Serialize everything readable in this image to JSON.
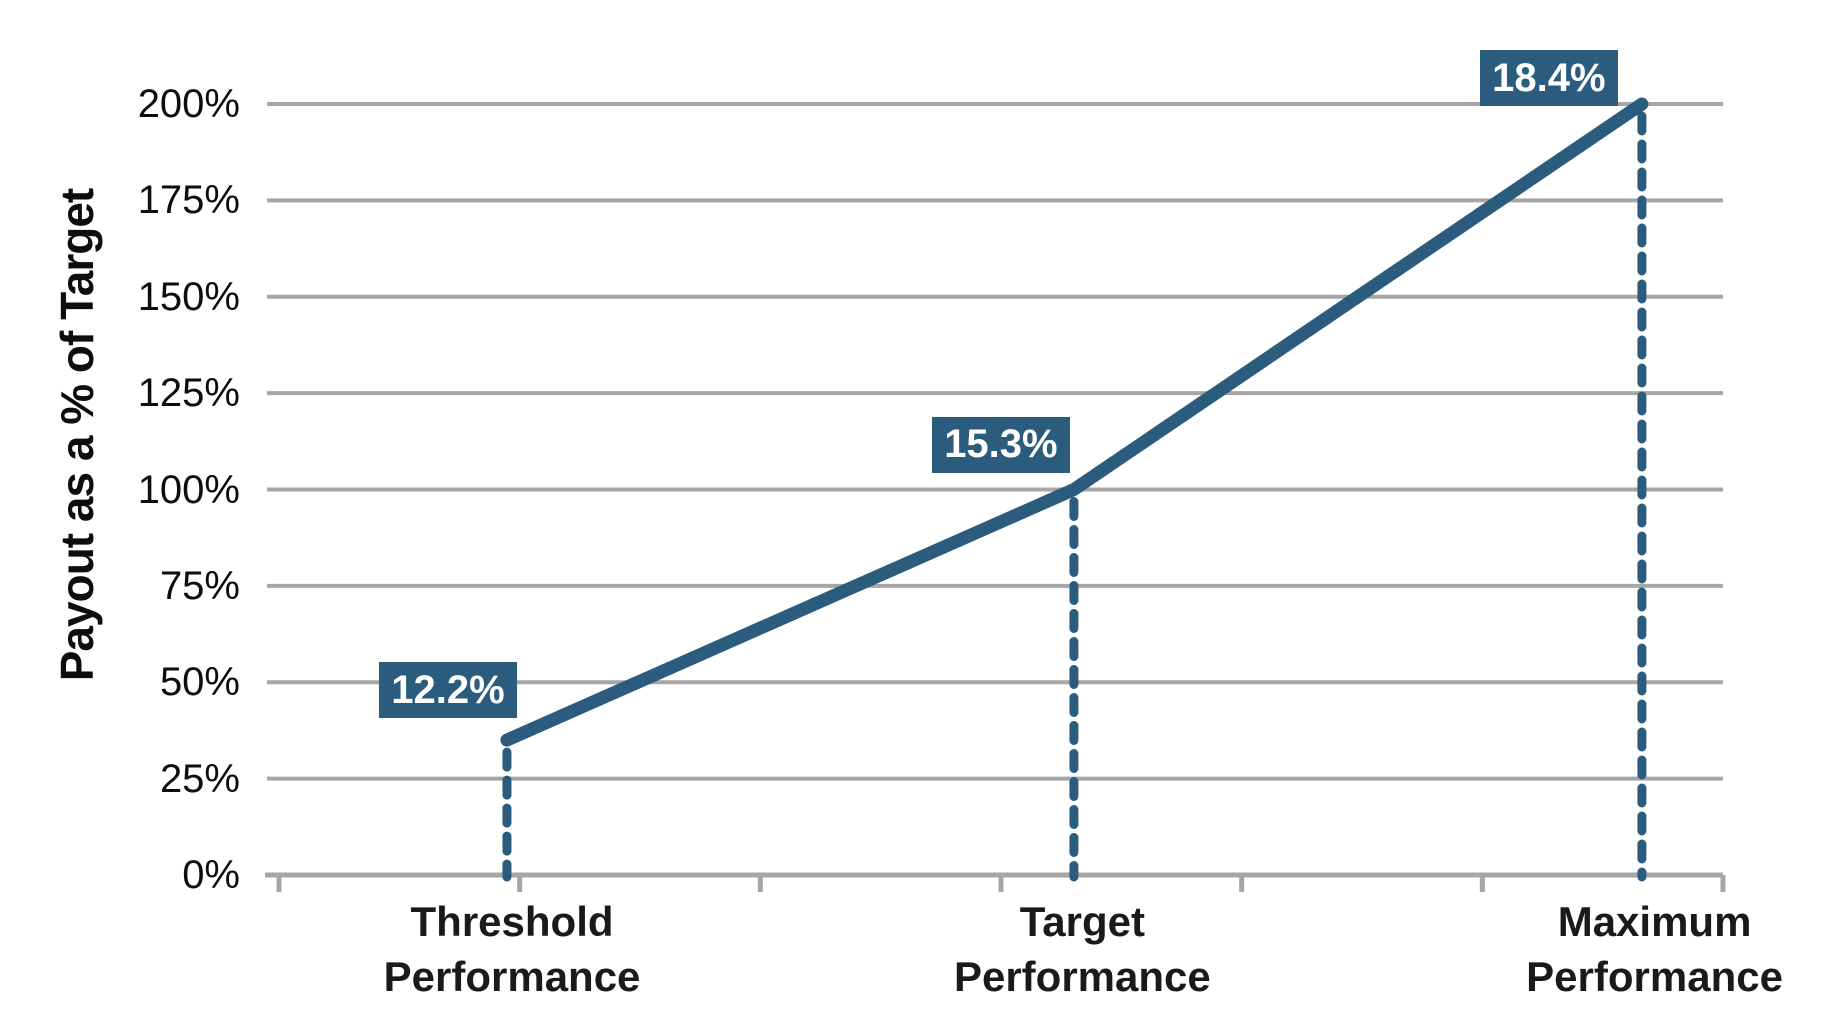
{
  "chart_data": {
    "type": "line",
    "title": "",
    "xlabel": "",
    "ylabel": "Payout as a % of Target",
    "ylim": [
      0,
      200
    ],
    "y_tick_step_pct": 25,
    "y_tick_labels": [
      "0%",
      "25%",
      "50%",
      "75%",
      "100%",
      "125%",
      "150%",
      "175%",
      "200%"
    ],
    "grid": "horizontal",
    "legend": "none",
    "categories": [
      "Threshold Performance",
      "Target Performance",
      "Maximum Performance"
    ],
    "category_label_lines": [
      "Threshold\nPerformance",
      "Target\nPerformance",
      "Maximum\nPerformance"
    ],
    "series": [
      {
        "name": "Payout as a % of Target",
        "values_pct": [
          35,
          100,
          200
        ]
      }
    ],
    "point_labels": [
      "12.2%",
      "15.3%",
      "18.4%"
    ],
    "drop_lines": "dashed vertical from each point to x-axis",
    "colors": {
      "line": "#2B5C7E",
      "drop_line": "#2B5C7E",
      "label_bg": "#2B5C7E",
      "label_text": "#FFFFFF",
      "gridline": "#A6A6A6",
      "axis": "#A6A6A6",
      "text": "#0D0D0D"
    }
  }
}
